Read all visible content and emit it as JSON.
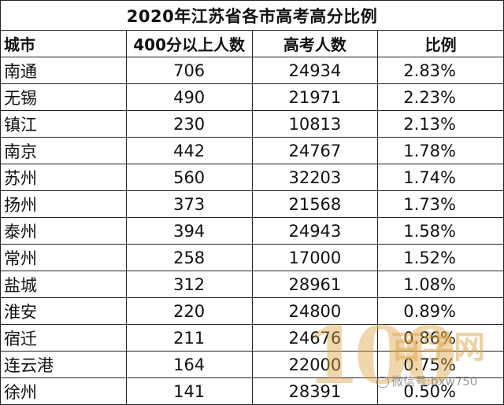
{
  "table": {
    "title": "2020年江苏省各市高考高分比例",
    "headers": [
      "城市",
      "400分以上人数",
      "高考人数",
      "比例"
    ],
    "rows": [
      [
        "南通",
        "706",
        "24934",
        "2.83%"
      ],
      [
        "无锡",
        "490",
        "21971",
        "2.23%"
      ],
      [
        "镇江",
        "230",
        "10813",
        "2.13%"
      ],
      [
        "南京",
        "442",
        "24767",
        "1.78%"
      ],
      [
        "苏州",
        "560",
        "32203",
        "1.74%"
      ],
      [
        "扬州",
        "373",
        "21568",
        "1.73%"
      ],
      [
        "泰州",
        "394",
        "24943",
        "1.58%"
      ],
      [
        "常州",
        "258",
        "17000",
        "1.52%"
      ],
      [
        "盐城",
        "312",
        "28961",
        "1.08%"
      ],
      [
        "淮安",
        "220",
        "24800",
        "0.89%"
      ],
      [
        "宿迁",
        "211",
        "24676",
        "0.86%"
      ],
      [
        "连云港",
        "164",
        "22000",
        "0.75%"
      ],
      [
        "徐州",
        "141",
        "28391",
        "0.50%"
      ]
    ]
  },
  "watermark": {
    "logo_number": "100",
    "logo_text": "百学网",
    "wechat_text": "微信号:bxw750"
  }
}
